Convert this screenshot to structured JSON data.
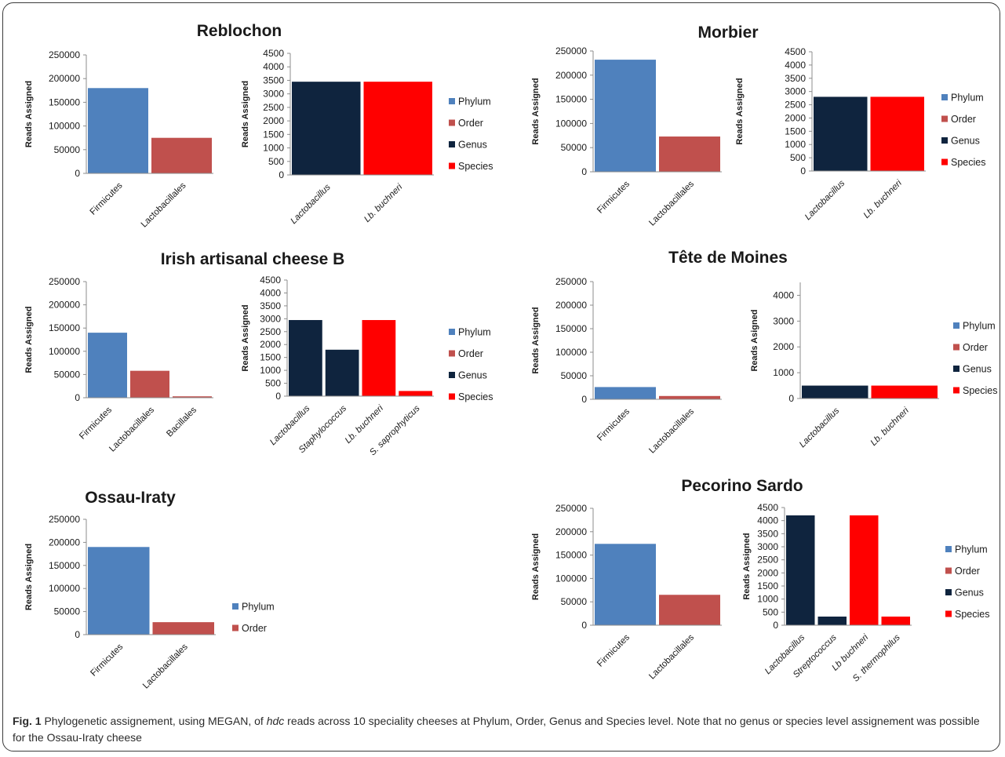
{
  "caption": {
    "figure_label": "Fig. 1",
    "before_italic": " Phylogenetic assignement, using MEGAN, of ",
    "italic": "hdc",
    "after_italic": " reads across 10 speciality cheeses at Phylum, Order, Genus and Species level. Note that no genus or species level assignement was possible for the Ossau-Iraty cheese"
  },
  "legend_labels": [
    "Phylum",
    "Order",
    "Genus",
    "Species"
  ],
  "colors": {
    "Phylum": "#4f81bd",
    "Order": "#c0504d",
    "Genus": "#0f243e",
    "Species": "#ff0000"
  },
  "chart_data": [
    {
      "group": "Reblochon",
      "type": "bar",
      "title": "Reblochon",
      "ylabel": "Reads Assigned",
      "ylim": [
        0,
        250000
      ],
      "yticks": [
        0,
        50000,
        100000,
        150000,
        200000,
        250000
      ],
      "categories": [
        "Firmicutes",
        "Lactobacillales"
      ],
      "levels": [
        "Phylum",
        "Order"
      ],
      "values": [
        180000,
        75000
      ],
      "italic_labels": false
    },
    {
      "group": "Reblochon",
      "type": "bar",
      "title": "",
      "ylabel": "Reads Assigned",
      "ylim": [
        0,
        4500
      ],
      "yticks": [
        0,
        500,
        1000,
        1500,
        2000,
        2500,
        3000,
        3500,
        4000,
        4500
      ],
      "categories": [
        "Lactobacillus",
        "Lb. buchneri"
      ],
      "levels": [
        "Genus",
        "Species"
      ],
      "values": [
        3450,
        3450
      ],
      "italic_labels": true
    },
    {
      "group": "Morbier",
      "type": "bar",
      "title": "Morbier",
      "ylabel": "Reads Assigned",
      "ylim": [
        0,
        250000
      ],
      "yticks": [
        0,
        50000,
        100000,
        150000,
        200000,
        250000
      ],
      "categories": [
        "Firmicutes",
        "Lactobacillales"
      ],
      "levels": [
        "Phylum",
        "Order"
      ],
      "values": [
        232000,
        73000
      ],
      "italic_labels": false
    },
    {
      "group": "Morbier",
      "type": "bar",
      "title": "",
      "ylabel": "Reads Assigned",
      "ylim": [
        0,
        4500
      ],
      "yticks": [
        0,
        500,
        1000,
        1500,
        2000,
        2500,
        3000,
        3500,
        4000,
        4500
      ],
      "categories": [
        "Lactobacillus",
        "Lb. buchneri"
      ],
      "levels": [
        "Genus",
        "Species"
      ],
      "values": [
        2800,
        2800
      ],
      "italic_labels": true
    },
    {
      "group": "Irish artisanal cheese B",
      "type": "bar",
      "title": "Irish artisanal cheese B",
      "ylabel": "Reads Assigned",
      "ylim": [
        0,
        250000
      ],
      "yticks": [
        0,
        50000,
        100000,
        150000,
        200000,
        250000
      ],
      "categories": [
        "Firmicutes",
        "Lactobacillales",
        "Bacillales"
      ],
      "levels": [
        "Phylum",
        "Order",
        "Order"
      ],
      "values": [
        140000,
        58000,
        3000
      ],
      "italic_labels": false
    },
    {
      "group": "Irish artisanal cheese B",
      "type": "bar",
      "title": "",
      "ylabel": "Reads Assigned",
      "ylim": [
        0,
        4500
      ],
      "yticks": [
        0,
        500,
        1000,
        1500,
        2000,
        2500,
        3000,
        3500,
        4000,
        4500
      ],
      "categories": [
        "Lactobacillus",
        "Staphylococcus",
        "Lb. buchneri",
        "S. saprophyticus"
      ],
      "levels": [
        "Genus",
        "Genus",
        "Species",
        "Species"
      ],
      "values": [
        2950,
        1800,
        2950,
        200
      ],
      "italic_labels": true
    },
    {
      "group": "Tête de Moines",
      "type": "bar",
      "title": "Tête de Moines",
      "ylabel": "Reads Assigned",
      "ylim": [
        0,
        250000
      ],
      "yticks": [
        0,
        50000,
        100000,
        150000,
        200000,
        250000
      ],
      "categories": [
        "Firmicutes",
        "Lactobacillales"
      ],
      "levels": [
        "Phylum",
        "Order"
      ],
      "values": [
        26000,
        7000
      ],
      "italic_labels": false
    },
    {
      "group": "Tête de Moines",
      "type": "bar",
      "title": "",
      "ylabel": "Reads Asigned",
      "ylim": [
        0,
        4500
      ],
      "yticks": [
        0,
        1000,
        2000,
        3000,
        4000
      ],
      "categories": [
        "Lactobacillus",
        "Lb. buchneri"
      ],
      "levels": [
        "Genus",
        "Species"
      ],
      "values": [
        500,
        500
      ],
      "italic_labels": true
    },
    {
      "group": "Ossau-Iraty",
      "type": "bar",
      "title": "Ossau-Iraty",
      "ylabel": "Reads Assigned",
      "ylim": [
        0,
        250000
      ],
      "yticks": [
        0,
        50000,
        100000,
        150000,
        200000,
        250000
      ],
      "categories": [
        "Firmicutes",
        "Lactobacillales"
      ],
      "levels": [
        "Phylum",
        "Order"
      ],
      "values": [
        190000,
        27000
      ],
      "italic_labels": false
    },
    {
      "group": "Pecorino Sardo",
      "type": "bar",
      "title": "Pecorino Sardo",
      "ylabel": "Reads Assigned",
      "ylim": [
        0,
        250000
      ],
      "yticks": [
        0,
        50000,
        100000,
        150000,
        200000,
        250000
      ],
      "categories": [
        "Firmicutes",
        "Lactobacillales"
      ],
      "levels": [
        "Phylum",
        "Order"
      ],
      "values": [
        174000,
        65000
      ],
      "italic_labels": false
    },
    {
      "group": "Pecorino Sardo",
      "type": "bar",
      "title": "",
      "ylabel": "Reads Assigned",
      "ylim": [
        0,
        4500
      ],
      "yticks": [
        0,
        500,
        1000,
        1500,
        2000,
        2500,
        3000,
        3500,
        4000,
        4500
      ],
      "categories": [
        "Lactobacillus",
        "Streptococcus",
        "Lb buchneri",
        "S. thermophilus"
      ],
      "levels": [
        "Genus",
        "Genus",
        "Species",
        "Species"
      ],
      "values": [
        4200,
        330,
        4200,
        330
      ],
      "italic_labels": true
    }
  ],
  "legends": [
    {
      "group": "Reblochon",
      "entries": [
        "Phylum",
        "Order",
        "Genus",
        "Species"
      ]
    },
    {
      "group": "Morbier",
      "entries": [
        "Phylum",
        "Order",
        "Genus",
        "Species"
      ]
    },
    {
      "group": "Irish artisanal cheese B",
      "entries": [
        "Phylum",
        "Order",
        "Genus",
        "Species"
      ]
    },
    {
      "group": "Tête de Moines",
      "entries": [
        "Phylum",
        "Order",
        "Genus",
        "Species"
      ]
    },
    {
      "group": "Ossau-Iraty",
      "entries": [
        "Phylum",
        "Order"
      ]
    },
    {
      "group": "Pecorino Sardo",
      "entries": [
        "Phylum",
        "Order",
        "Genus",
        "Species"
      ]
    }
  ]
}
